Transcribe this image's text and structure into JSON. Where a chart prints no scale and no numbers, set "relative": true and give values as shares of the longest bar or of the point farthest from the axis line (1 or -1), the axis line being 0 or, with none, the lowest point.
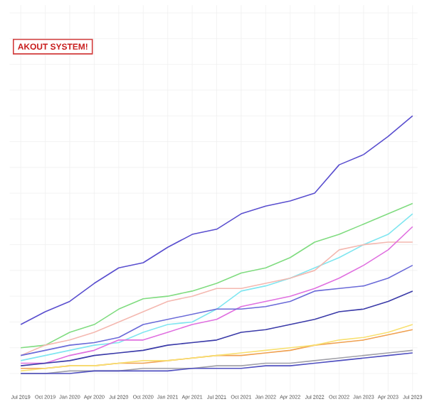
{
  "chart_data": {
    "type": "line",
    "relative": true,
    "grid": true,
    "tick_labels": "x",
    "marker": "none",
    "line_style": "solid",
    "annotations": [
      "AKOUT SYSTEM!"
    ],
    "categories": [
      "Jul 2019",
      "Oct 2019",
      "Jan 2020",
      "Apr 2020",
      "Jul 2020",
      "Oct 2020",
      "Jan 2021",
      "Apr 2021",
      "Jul 2021",
      "Oct 2021",
      "Jan 2022",
      "Apr 2022",
      "Jul 2022",
      "Oct 2022",
      "Jan 2023",
      "Apr 2023",
      "Jul 2023"
    ],
    "series": [
      {
        "color": "#5a4fcf",
        "values": [
          0.19,
          0.24,
          0.28,
          0.35,
          0.41,
          0.43,
          0.49,
          0.54,
          0.56,
          0.62,
          0.65,
          0.67,
          0.7,
          0.81,
          0.85,
          0.92,
          1.0
        ]
      },
      {
        "color": "#80dc80",
        "values": [
          0.1,
          0.11,
          0.16,
          0.19,
          0.25,
          0.29,
          0.3,
          0.32,
          0.35,
          0.39,
          0.41,
          0.45,
          0.51,
          0.54,
          0.58,
          0.62,
          0.66
        ]
      },
      {
        "color": "#80e6f0",
        "values": [
          0.05,
          0.07,
          0.09,
          0.11,
          0.12,
          0.16,
          0.19,
          0.2,
          0.25,
          0.32,
          0.34,
          0.37,
          0.41,
          0.45,
          0.5,
          0.54,
          0.62
        ]
      },
      {
        "color": "#f4b8b0",
        "values": [
          0.07,
          0.11,
          0.13,
          0.16,
          0.2,
          0.24,
          0.28,
          0.3,
          0.33,
          0.33,
          0.35,
          0.37,
          0.4,
          0.48,
          0.5,
          0.51,
          0.51
        ]
      },
      {
        "color": "#e070e0",
        "values": [
          0.04,
          0.04,
          0.07,
          0.09,
          0.13,
          0.13,
          0.16,
          0.19,
          0.21,
          0.26,
          0.28,
          0.3,
          0.33,
          0.37,
          0.42,
          0.48,
          0.57
        ]
      },
      {
        "color": "#6a6ad8",
        "values": [
          0.07,
          0.09,
          0.11,
          0.12,
          0.14,
          0.19,
          0.21,
          0.23,
          0.25,
          0.25,
          0.26,
          0.28,
          0.32,
          0.33,
          0.34,
          0.37,
          0.42
        ]
      },
      {
        "color": "#3a3aa8",
        "values": [
          0.03,
          0.04,
          0.05,
          0.07,
          0.08,
          0.09,
          0.11,
          0.12,
          0.13,
          0.16,
          0.17,
          0.19,
          0.21,
          0.24,
          0.25,
          0.28,
          0.32
        ]
      },
      {
        "color": "#f0a050",
        "values": [
          0.02,
          0.02,
          0.03,
          0.03,
          0.04,
          0.04,
          0.05,
          0.06,
          0.07,
          0.07,
          0.08,
          0.09,
          0.11,
          0.12,
          0.13,
          0.15,
          0.17
        ]
      },
      {
        "color": "#f8e070",
        "values": [
          0.01,
          0.02,
          0.03,
          0.03,
          0.04,
          0.05,
          0.05,
          0.06,
          0.07,
          0.08,
          0.09,
          0.1,
          0.11,
          0.13,
          0.14,
          0.16,
          0.19
        ]
      },
      {
        "color": "#a0a0a8",
        "values": [
          0.0,
          0.0,
          0.01,
          0.01,
          0.01,
          0.02,
          0.02,
          0.02,
          0.03,
          0.03,
          0.04,
          0.04,
          0.05,
          0.06,
          0.07,
          0.08,
          0.09
        ]
      },
      {
        "color": "#5050c0",
        "values": [
          0.0,
          0.0,
          0.0,
          0.01,
          0.01,
          0.01,
          0.01,
          0.02,
          0.02,
          0.02,
          0.03,
          0.03,
          0.04,
          0.05,
          0.06,
          0.07,
          0.08
        ]
      }
    ]
  }
}
